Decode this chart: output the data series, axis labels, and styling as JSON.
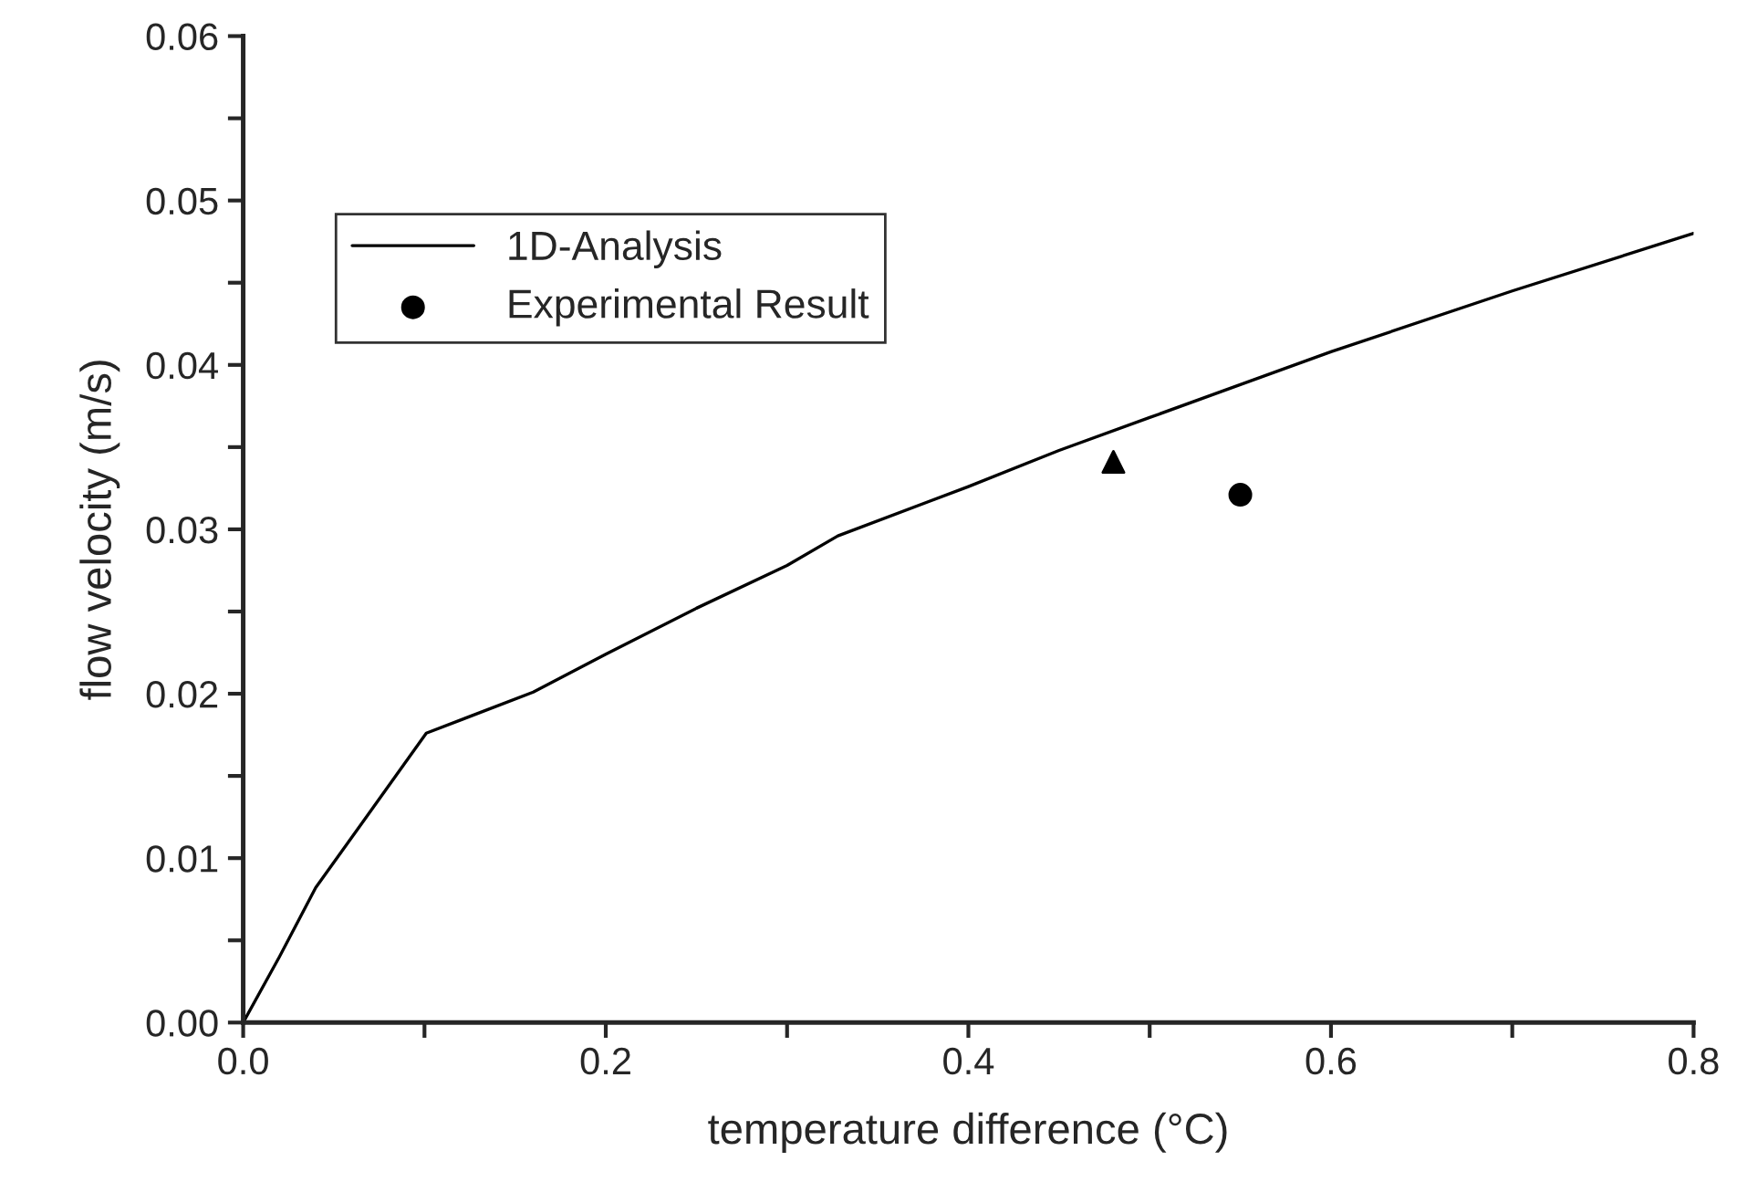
{
  "chart_data": {
    "type": "line",
    "xlabel": "temperature difference (°C)",
    "ylabel": "flow velocity (m/s)",
    "xlim": [
      0,
      0.8
    ],
    "ylim": [
      0,
      0.06
    ],
    "xticks": [
      {
        "value": 0,
        "label": "0.0"
      },
      {
        "value": 0.1,
        "label": null
      },
      {
        "value": 0.2,
        "label": "0.2"
      },
      {
        "value": 0.3,
        "label": null
      },
      {
        "value": 0.4,
        "label": "0.4"
      },
      {
        "value": 0.5,
        "label": null
      },
      {
        "value": 0.6,
        "label": "0.6"
      },
      {
        "value": 0.7,
        "label": null
      },
      {
        "value": 0.8,
        "label": "0.8"
      }
    ],
    "yticks": [
      {
        "value": 0,
        "label": "0.00"
      },
      {
        "value": 0.005,
        "label": null
      },
      {
        "value": 0.01,
        "label": "0.01"
      },
      {
        "value": 0.015,
        "label": null
      },
      {
        "value": 0.02,
        "label": "0.02"
      },
      {
        "value": 0.025,
        "label": null
      },
      {
        "value": 0.03,
        "label": "0.03"
      },
      {
        "value": 0.035,
        "label": null
      },
      {
        "value": 0.04,
        "label": "0.04"
      },
      {
        "value": 0.045,
        "label": null
      },
      {
        "value": 0.05,
        "label": "0.05"
      },
      {
        "value": 0.055,
        "label": null
      },
      {
        "value": 0.06,
        "label": "0.06"
      }
    ],
    "grid": false,
    "legend": "top left",
    "series": [
      {
        "name": "1D-Analysis",
        "color": "#000000",
        "marker": "none",
        "line_style": "solid",
        "x": [
          0,
          0.02,
          0.04,
          0.066,
          0.101,
          0.16,
          0.2,
          0.25,
          0.3,
          0.328,
          0.4,
          0.45,
          0.5,
          0.55,
          0.6,
          0.7,
          0.8
        ],
        "values": [
          0,
          0.004,
          0.0082,
          0.0122,
          0.0176,
          0.0201,
          0.0224,
          0.0252,
          0.0278,
          0.0296,
          0.0326,
          0.0348,
          0.0368,
          0.0388,
          0.0408,
          0.0445,
          0.048
        ]
      },
      {
        "type": "scatter",
        "color": "#000000",
        "marker": "triangle",
        "x": [
          0.48
        ],
        "values": [
          0.0341
        ]
      },
      {
        "name": "Experimental Result",
        "type": "scatter",
        "color": "#000000",
        "marker": "circle",
        "x": [
          0.55
        ],
        "values": [
          0.0321
        ]
      }
    ]
  }
}
